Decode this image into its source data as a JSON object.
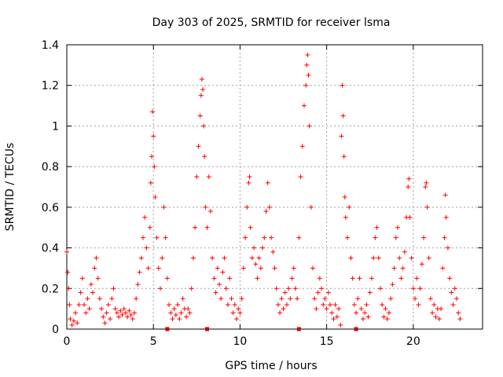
{
  "chart_data": {
    "type": "scatter",
    "title": "Day 303 of 2025, SRMTID for receiver lsma",
    "xlabel": "GPS time / hours",
    "ylabel": "SRMTID / TECUs",
    "xlim": [
      0,
      24
    ],
    "ylim": [
      0,
      1.4
    ],
    "x_ticks": [
      0,
      5,
      10,
      15,
      20
    ],
    "x_tick_labels": [
      "0",
      "5",
      "10",
      "15",
      "20"
    ],
    "y_ticks": [
      0,
      0.2,
      0.4,
      0.6,
      0.8,
      1,
      1.2,
      1.4
    ],
    "y_tick_labels": [
      "0",
      "0.2",
      "0.4",
      "0.6",
      "0.8",
      "1",
      "1.2",
      "1.4"
    ],
    "grid": true,
    "marker": "+",
    "colors": {
      "points": "#ff0000",
      "markers": "#cc0000",
      "grid": "#a0a0a0",
      "axes": "#000000"
    },
    "series": [
      {
        "name": "SRMTID",
        "points": [
          [
            0.0,
            0.38
          ],
          [
            0.05,
            0.28
          ],
          [
            0.1,
            0.2
          ],
          [
            0.15,
            0.12
          ],
          [
            0.2,
            0.05
          ],
          [
            0.3,
            0.02
          ],
          [
            0.4,
            0.04
          ],
          [
            0.5,
            0.08
          ],
          [
            0.6,
            0.03
          ],
          [
            0.7,
            0.12
          ],
          [
            0.8,
            0.18
          ],
          [
            0.9,
            0.25
          ],
          [
            1.0,
            0.12
          ],
          [
            1.1,
            0.08
          ],
          [
            1.2,
            0.15
          ],
          [
            1.3,
            0.1
          ],
          [
            1.4,
            0.22
          ],
          [
            1.5,
            0.18
          ],
          [
            1.6,
            0.3
          ],
          [
            1.7,
            0.35
          ],
          [
            1.8,
            0.25
          ],
          [
            1.9,
            0.15
          ],
          [
            2.0,
            0.1
          ],
          [
            2.1,
            0.06
          ],
          [
            2.2,
            0.03
          ],
          [
            2.3,
            0.08
          ],
          [
            2.4,
            0.12
          ],
          [
            2.5,
            0.05
          ],
          [
            2.6,
            0.15
          ],
          [
            2.7,
            0.2
          ],
          [
            2.8,
            0.1
          ],
          [
            2.9,
            0.08
          ],
          [
            3.0,
            0.06
          ],
          [
            3.1,
            0.09
          ],
          [
            3.2,
            0.07
          ],
          [
            3.3,
            0.1
          ],
          [
            3.4,
            0.08
          ],
          [
            3.5,
            0.06
          ],
          [
            3.6,
            0.09
          ],
          [
            3.7,
            0.07
          ],
          [
            3.8,
            0.05
          ],
          [
            3.9,
            0.08
          ],
          [
            4.0,
            0.15
          ],
          [
            4.1,
            0.22
          ],
          [
            4.2,
            0.28
          ],
          [
            4.3,
            0.35
          ],
          [
            4.4,
            0.45
          ],
          [
            4.5,
            0.55
          ],
          [
            4.6,
            0.4
          ],
          [
            4.7,
            0.3
          ],
          [
            4.8,
            0.5
          ],
          [
            4.85,
            0.72
          ],
          [
            4.9,
            0.85
          ],
          [
            4.95,
            1.07
          ],
          [
            5.0,
            0.95
          ],
          [
            5.05,
            0.8
          ],
          [
            5.1,
            0.65
          ],
          [
            5.2,
            0.45
          ],
          [
            5.3,
            0.3
          ],
          [
            5.4,
            0.2
          ],
          [
            5.5,
            0.35
          ],
          [
            5.6,
            0.6
          ],
          [
            5.7,
            0.45
          ],
          [
            5.8,
            0.25
          ],
          [
            5.9,
            0.12
          ],
          [
            6.0,
            0.08
          ],
          [
            6.1,
            0.05
          ],
          [
            6.2,
            0.1
          ],
          [
            6.3,
            0.07
          ],
          [
            6.4,
            0.12
          ],
          [
            6.5,
            0.05
          ],
          [
            6.6,
            0.08
          ],
          [
            6.7,
            0.15
          ],
          [
            6.8,
            0.1
          ],
          [
            6.9,
            0.06
          ],
          [
            7.0,
            0.1
          ],
          [
            7.1,
            0.08
          ],
          [
            7.2,
            0.2
          ],
          [
            7.3,
            0.35
          ],
          [
            7.4,
            0.5
          ],
          [
            7.5,
            0.75
          ],
          [
            7.6,
            0.9
          ],
          [
            7.7,
            1.05
          ],
          [
            7.75,
            1.15
          ],
          [
            7.8,
            1.23
          ],
          [
            7.85,
            1.18
          ],
          [
            7.9,
            1.0
          ],
          [
            7.95,
            0.85
          ],
          [
            8.0,
            0.6
          ],
          [
            8.1,
            0.5
          ],
          [
            8.2,
            0.75
          ],
          [
            8.3,
            0.58
          ],
          [
            8.4,
            0.35
          ],
          [
            8.5,
            0.25
          ],
          [
            8.6,
            0.18
          ],
          [
            8.7,
            0.3
          ],
          [
            8.8,
            0.22
          ],
          [
            8.9,
            0.15
          ],
          [
            9.0,
            0.28
          ],
          [
            9.1,
            0.35
          ],
          [
            9.2,
            0.2
          ],
          [
            9.3,
            0.12
          ],
          [
            9.4,
            0.25
          ],
          [
            9.5,
            0.15
          ],
          [
            9.6,
            0.08
          ],
          [
            9.7,
            0.12
          ],
          [
            9.8,
            0.05
          ],
          [
            9.9,
            0.1
          ],
          [
            10.0,
            0.08
          ],
          [
            10.1,
            0.15
          ],
          [
            10.2,
            0.3
          ],
          [
            10.3,
            0.45
          ],
          [
            10.4,
            0.6
          ],
          [
            10.5,
            0.72
          ],
          [
            10.55,
            0.75
          ],
          [
            10.6,
            0.5
          ],
          [
            10.7,
            0.35
          ],
          [
            10.8,
            0.4
          ],
          [
            10.9,
            0.32
          ],
          [
            11.0,
            0.25
          ],
          [
            11.1,
            0.35
          ],
          [
            11.2,
            0.3
          ],
          [
            11.3,
            0.4
          ],
          [
            11.4,
            0.45
          ],
          [
            11.5,
            0.58
          ],
          [
            11.6,
            0.72
          ],
          [
            11.7,
            0.6
          ],
          [
            11.8,
            0.45
          ],
          [
            11.9,
            0.38
          ],
          [
            12.0,
            0.3
          ],
          [
            12.1,
            0.2
          ],
          [
            12.2,
            0.12
          ],
          [
            12.3,
            0.08
          ],
          [
            12.4,
            0.15
          ],
          [
            12.5,
            0.1
          ],
          [
            12.6,
            0.18
          ],
          [
            12.7,
            0.12
          ],
          [
            12.8,
            0.2
          ],
          [
            12.9,
            0.15
          ],
          [
            13.0,
            0.25
          ],
          [
            13.1,
            0.3
          ],
          [
            13.2,
            0.2
          ],
          [
            13.3,
            0.15
          ],
          [
            13.4,
            0.45
          ],
          [
            13.5,
            0.75
          ],
          [
            13.6,
            0.9
          ],
          [
            13.7,
            1.1
          ],
          [
            13.8,
            1.2
          ],
          [
            13.85,
            1.3
          ],
          [
            13.9,
            1.35
          ],
          [
            13.95,
            1.25
          ],
          [
            14.0,
            1.0
          ],
          [
            14.1,
            0.6
          ],
          [
            14.2,
            0.3
          ],
          [
            14.3,
            0.15
          ],
          [
            14.4,
            0.1
          ],
          [
            14.5,
            0.18
          ],
          [
            14.6,
            0.25
          ],
          [
            14.7,
            0.2
          ],
          [
            14.8,
            0.12
          ],
          [
            14.9,
            0.15
          ],
          [
            15.0,
            0.1
          ],
          [
            15.1,
            0.18
          ],
          [
            15.2,
            0.12
          ],
          [
            15.3,
            0.08
          ],
          [
            15.4,
            0.05
          ],
          [
            15.5,
            0.12
          ],
          [
            15.6,
            0.06
          ],
          [
            15.7,
            0.1
          ],
          [
            15.8,
            0.02
          ],
          [
            15.85,
            0.95
          ],
          [
            15.9,
            1.2
          ],
          [
            15.95,
            1.05
          ],
          [
            16.0,
            0.85
          ],
          [
            16.05,
            0.65
          ],
          [
            16.1,
            0.55
          ],
          [
            16.2,
            0.45
          ],
          [
            16.3,
            0.6
          ],
          [
            16.4,
            0.35
          ],
          [
            16.5,
            0.25
          ],
          [
            16.6,
            0.12
          ],
          [
            16.7,
            0.08
          ],
          [
            16.8,
            0.15
          ],
          [
            16.9,
            0.25
          ],
          [
            17.0,
            0.1
          ],
          [
            17.1,
            0.05
          ],
          [
            17.2,
            0.08
          ],
          [
            17.3,
            0.12
          ],
          [
            17.4,
            0.06
          ],
          [
            17.5,
            0.18
          ],
          [
            17.6,
            0.25
          ],
          [
            17.7,
            0.35
          ],
          [
            17.8,
            0.45
          ],
          [
            17.9,
            0.5
          ],
          [
            18.0,
            0.35
          ],
          [
            18.1,
            0.2
          ],
          [
            18.2,
            0.12
          ],
          [
            18.3,
            0.06
          ],
          [
            18.4,
            0.1
          ],
          [
            18.5,
            0.05
          ],
          [
            18.6,
            0.08
          ],
          [
            18.7,
            0.15
          ],
          [
            18.8,
            0.22
          ],
          [
            18.9,
            0.3
          ],
          [
            19.0,
            0.45
          ],
          [
            19.1,
            0.5
          ],
          [
            19.2,
            0.35
          ],
          [
            19.3,
            0.25
          ],
          [
            19.4,
            0.3
          ],
          [
            19.5,
            0.38
          ],
          [
            19.6,
            0.55
          ],
          [
            19.7,
            0.7
          ],
          [
            19.75,
            0.74
          ],
          [
            19.8,
            0.55
          ],
          [
            19.9,
            0.35
          ],
          [
            20.0,
            0.2
          ],
          [
            20.1,
            0.15
          ],
          [
            20.2,
            0.25
          ],
          [
            20.3,
            0.12
          ],
          [
            20.4,
            0.2
          ],
          [
            20.5,
            0.32
          ],
          [
            20.6,
            0.45
          ],
          [
            20.7,
            0.7
          ],
          [
            20.75,
            0.72
          ],
          [
            20.8,
            0.6
          ],
          [
            20.9,
            0.35
          ],
          [
            21.0,
            0.15
          ],
          [
            21.1,
            0.08
          ],
          [
            21.2,
            0.12
          ],
          [
            21.3,
            0.06
          ],
          [
            21.4,
            0.1
          ],
          [
            21.5,
            0.05
          ],
          [
            21.6,
            0.1
          ],
          [
            21.7,
            0.3
          ],
          [
            21.8,
            0.45
          ],
          [
            21.85,
            0.66
          ],
          [
            21.9,
            0.55
          ],
          [
            22.0,
            0.4
          ],
          [
            22.1,
            0.25
          ],
          [
            22.2,
            0.18
          ],
          [
            22.3,
            0.12
          ],
          [
            22.4,
            0.2
          ],
          [
            22.5,
            0.15
          ],
          [
            22.6,
            0.08
          ],
          [
            22.7,
            0.05
          ]
        ]
      }
    ],
    "baseline_markers_x": [
      5.8,
      8.1,
      13.4,
      16.7
    ]
  }
}
